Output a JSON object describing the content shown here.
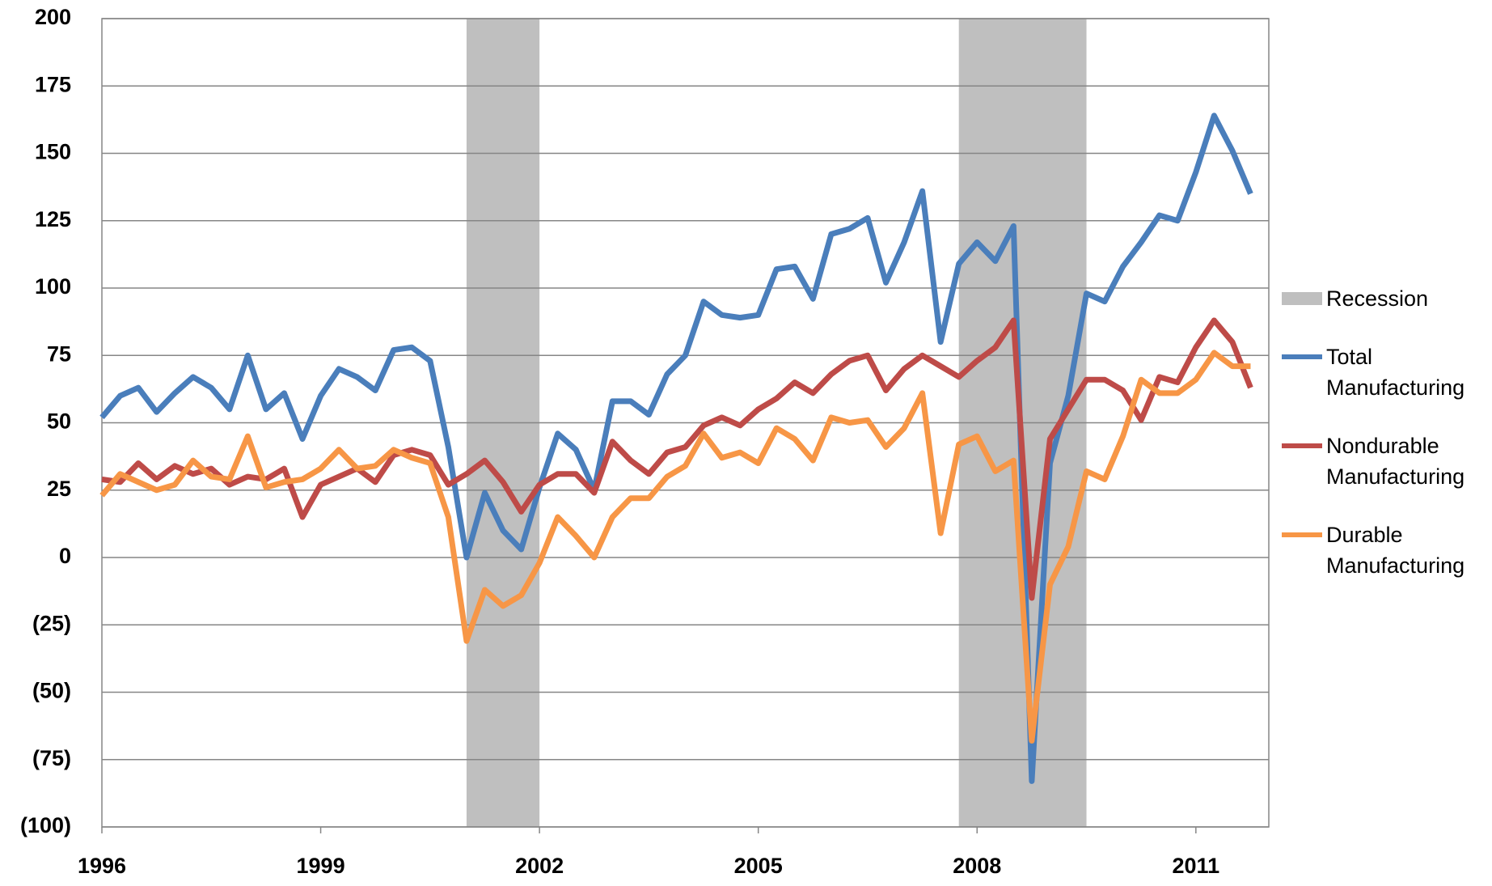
{
  "chart_data": {
    "type": "line",
    "x": [
      1996,
      1996.25,
      1996.5,
      1996.75,
      1997,
      1997.25,
      1997.5,
      1997.75,
      1998,
      1998.25,
      1998.5,
      1998.75,
      1999,
      1999.25,
      1999.5,
      1999.75,
      2000,
      2000.25,
      2000.5,
      2000.75,
      2001,
      2001.25,
      2001.5,
      2001.75,
      2002,
      2002.25,
      2002.5,
      2002.75,
      2003,
      2003.25,
      2003.5,
      2003.75,
      2004,
      2004.25,
      2004.5,
      2004.75,
      2005,
      2005.25,
      2005.5,
      2005.75,
      2006,
      2006.25,
      2006.5,
      2006.75,
      2007,
      2007.25,
      2007.5,
      2007.75,
      2008,
      2008.25,
      2008.5,
      2008.75,
      2009,
      2009.25,
      2009.5,
      2009.75,
      2010,
      2010.25,
      2010.5,
      2010.75,
      2011,
      2011.25,
      2011.5,
      2011.75
    ],
    "series": [
      {
        "name": "Total Manufacturing",
        "color": "#4a7ebb",
        "values": [
          52,
          60,
          63,
          54,
          61,
          67,
          63,
          55,
          75,
          55,
          61,
          44,
          60,
          70,
          67,
          62,
          77,
          78,
          73,
          41,
          0,
          24,
          10,
          3,
          26,
          46,
          40,
          25,
          58,
          58,
          53,
          68,
          75,
          95,
          90,
          89,
          90,
          107,
          108,
          96,
          120,
          122,
          126,
          102,
          117,
          136,
          80,
          109,
          117,
          110,
          123,
          -83,
          35,
          60,
          98,
          95,
          108,
          117,
          127,
          125,
          143,
          164,
          151,
          135
        ]
      },
      {
        "name": "Nondurable Manufacturing",
        "color": "#be4b48",
        "values": [
          29,
          28,
          35,
          29,
          34,
          31,
          33,
          27,
          30,
          29,
          33,
          15,
          27,
          30,
          33,
          28,
          38,
          40,
          38,
          27,
          31,
          36,
          28,
          17,
          27,
          31,
          31,
          24,
          43,
          36,
          31,
          39,
          41,
          49,
          52,
          49,
          55,
          59,
          65,
          61,
          68,
          73,
          75,
          62,
          70,
          75,
          71,
          67,
          73,
          78,
          88,
          -15,
          44,
          55,
          66,
          66,
          62,
          51,
          67,
          65,
          78,
          88,
          80,
          63
        ]
      },
      {
        "name": "Durable Manufacturing",
        "color": "#f79646",
        "values": [
          23,
          31,
          28,
          25,
          27,
          36,
          30,
          29,
          45,
          26,
          28,
          29,
          33,
          40,
          33,
          34,
          40,
          37,
          35,
          15,
          -31,
          -12,
          -18,
          -14,
          -2,
          15,
          8,
          0,
          15,
          22,
          22,
          30,
          34,
          46,
          37,
          39,
          35,
          48,
          44,
          36,
          52,
          50,
          51,
          41,
          48,
          61,
          9,
          42,
          45,
          32,
          36,
          -68,
          -10,
          4,
          32,
          29,
          45,
          66,
          61,
          61,
          66,
          76,
          71,
          71
        ]
      }
    ],
    "recession": {
      "name": "Recession",
      "color": "#bfbfbf",
      "periods": [
        [
          2001,
          2002
        ],
        [
          2007.75,
          2009.5
        ]
      ]
    },
    "xlim": [
      1996,
      2012
    ],
    "xticks": [
      1996,
      1999,
      2002,
      2005,
      2008,
      2011
    ],
    "ylim": [
      -100,
      200
    ],
    "yticks": [
      200,
      175,
      150,
      125,
      100,
      75,
      50,
      25,
      0,
      {
        "value": -25,
        "label": "(25)"
      },
      {
        "value": -50,
        "label": "(50)"
      },
      {
        "value": -75,
        "label": "(75)"
      },
      {
        "value": -100,
        "label": "(100)"
      }
    ],
    "grid": true,
    "legend": "right"
  }
}
